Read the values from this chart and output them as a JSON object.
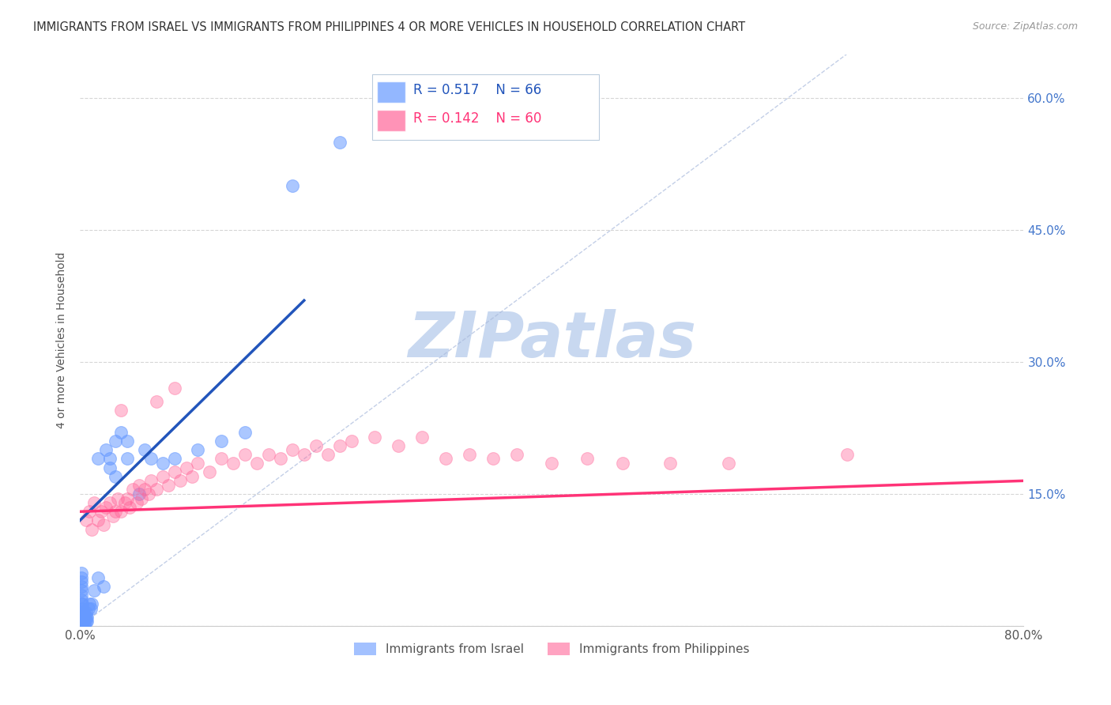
{
  "title": "IMMIGRANTS FROM ISRAEL VS IMMIGRANTS FROM PHILIPPINES 4 OR MORE VEHICLES IN HOUSEHOLD CORRELATION CHART",
  "source": "Source: ZipAtlas.com",
  "ylabel": "4 or more Vehicles in Household",
  "xlim": [
    0.0,
    0.8
  ],
  "ylim": [
    0.0,
    0.65
  ],
  "xticks": [
    0.0,
    0.2,
    0.4,
    0.6,
    0.8
  ],
  "xticklabels": [
    "0.0%",
    "",
    "",
    "",
    "80.0%"
  ],
  "yticks_left": [
    0.0,
    0.15,
    0.3,
    0.45,
    0.6
  ],
  "yticklabels_left": [
    "",
    "",
    "",
    "",
    ""
  ],
  "yticks_right": [
    0.15,
    0.3,
    0.45,
    0.6
  ],
  "yticklabels_right": [
    "15.0%",
    "30.0%",
    "45.0%",
    "60.0%"
  ],
  "legend_r_israel": "R = 0.517",
  "legend_n_israel": "N = 66",
  "legend_r_philippines": "R = 0.142",
  "legend_n_philippines": "N = 60",
  "legend_label_israel": "Immigrants from Israel",
  "legend_label_philippines": "Immigrants from Philippines",
  "israel_color": "#6699FF",
  "philippines_color": "#FF6699",
  "israel_line_color": "#2255BB",
  "philippines_line_color": "#FF3377",
  "watermark": "ZIPatlas",
  "watermark_color": "#C8D8F0",
  "background_color": "#FFFFFF",
  "grid_color": "#CCCCCC",
  "title_color": "#333333",
  "israel_scatter": [
    [
      0.001,
      0.001
    ],
    [
      0.001,
      0.002
    ],
    [
      0.001,
      0.003
    ],
    [
      0.001,
      0.004
    ],
    [
      0.001,
      0.005
    ],
    [
      0.001,
      0.006
    ],
    [
      0.001,
      0.007
    ],
    [
      0.001,
      0.008
    ],
    [
      0.001,
      0.01
    ],
    [
      0.001,
      0.012
    ],
    [
      0.001,
      0.015
    ],
    [
      0.001,
      0.02
    ],
    [
      0.001,
      0.025
    ],
    [
      0.001,
      0.03
    ],
    [
      0.001,
      0.035
    ],
    [
      0.001,
      0.04
    ],
    [
      0.001,
      0.045
    ],
    [
      0.001,
      0.05
    ],
    [
      0.001,
      0.055
    ],
    [
      0.001,
      0.06
    ],
    [
      0.002,
      0.001
    ],
    [
      0.002,
      0.003
    ],
    [
      0.002,
      0.005
    ],
    [
      0.002,
      0.008
    ],
    [
      0.002,
      0.012
    ],
    [
      0.002,
      0.015
    ],
    [
      0.002,
      0.02
    ],
    [
      0.002,
      0.025
    ],
    [
      0.003,
      0.002
    ],
    [
      0.003,
      0.005
    ],
    [
      0.003,
      0.01
    ],
    [
      0.003,
      0.015
    ],
    [
      0.004,
      0.003
    ],
    [
      0.004,
      0.008
    ],
    [
      0.004,
      0.013
    ],
    [
      0.005,
      0.005
    ],
    [
      0.005,
      0.01
    ],
    [
      0.005,
      0.015
    ],
    [
      0.006,
      0.005
    ],
    [
      0.006,
      0.01
    ],
    [
      0.007,
      0.02
    ],
    [
      0.008,
      0.025
    ],
    [
      0.009,
      0.02
    ],
    [
      0.01,
      0.025
    ],
    [
      0.012,
      0.04
    ],
    [
      0.015,
      0.055
    ],
    [
      0.02,
      0.045
    ],
    [
      0.022,
      0.2
    ],
    [
      0.025,
      0.19
    ],
    [
      0.03,
      0.21
    ],
    [
      0.035,
      0.22
    ],
    [
      0.04,
      0.21
    ],
    [
      0.05,
      0.15
    ],
    [
      0.055,
      0.2
    ],
    [
      0.06,
      0.19
    ],
    [
      0.07,
      0.185
    ],
    [
      0.08,
      0.19
    ],
    [
      0.1,
      0.2
    ],
    [
      0.12,
      0.21
    ],
    [
      0.14,
      0.22
    ],
    [
      0.22,
      0.55
    ],
    [
      0.18,
      0.5
    ],
    [
      0.025,
      0.18
    ],
    [
      0.03,
      0.17
    ],
    [
      0.04,
      0.19
    ],
    [
      0.015,
      0.19
    ]
  ],
  "philippines_scatter": [
    [
      0.005,
      0.12
    ],
    [
      0.008,
      0.13
    ],
    [
      0.01,
      0.11
    ],
    [
      0.012,
      0.14
    ],
    [
      0.015,
      0.12
    ],
    [
      0.018,
      0.13
    ],
    [
      0.02,
      0.115
    ],
    [
      0.022,
      0.135
    ],
    [
      0.025,
      0.14
    ],
    [
      0.028,
      0.125
    ],
    [
      0.03,
      0.13
    ],
    [
      0.032,
      0.145
    ],
    [
      0.035,
      0.13
    ],
    [
      0.038,
      0.14
    ],
    [
      0.04,
      0.145
    ],
    [
      0.042,
      0.135
    ],
    [
      0.045,
      0.155
    ],
    [
      0.048,
      0.14
    ],
    [
      0.05,
      0.16
    ],
    [
      0.052,
      0.145
    ],
    [
      0.055,
      0.155
    ],
    [
      0.058,
      0.15
    ],
    [
      0.06,
      0.165
    ],
    [
      0.065,
      0.155
    ],
    [
      0.07,
      0.17
    ],
    [
      0.075,
      0.16
    ],
    [
      0.08,
      0.175
    ],
    [
      0.085,
      0.165
    ],
    [
      0.09,
      0.18
    ],
    [
      0.095,
      0.17
    ],
    [
      0.1,
      0.185
    ],
    [
      0.11,
      0.175
    ],
    [
      0.12,
      0.19
    ],
    [
      0.13,
      0.185
    ],
    [
      0.14,
      0.195
    ],
    [
      0.15,
      0.185
    ],
    [
      0.16,
      0.195
    ],
    [
      0.17,
      0.19
    ],
    [
      0.18,
      0.2
    ],
    [
      0.19,
      0.195
    ],
    [
      0.2,
      0.205
    ],
    [
      0.21,
      0.195
    ],
    [
      0.22,
      0.205
    ],
    [
      0.23,
      0.21
    ],
    [
      0.25,
      0.215
    ],
    [
      0.27,
      0.205
    ],
    [
      0.29,
      0.215
    ],
    [
      0.31,
      0.19
    ],
    [
      0.33,
      0.195
    ],
    [
      0.35,
      0.19
    ],
    [
      0.37,
      0.195
    ],
    [
      0.4,
      0.185
    ],
    [
      0.43,
      0.19
    ],
    [
      0.46,
      0.185
    ],
    [
      0.5,
      0.185
    ],
    [
      0.55,
      0.185
    ],
    [
      0.035,
      0.245
    ],
    [
      0.065,
      0.255
    ],
    [
      0.08,
      0.27
    ],
    [
      0.65,
      0.195
    ]
  ]
}
